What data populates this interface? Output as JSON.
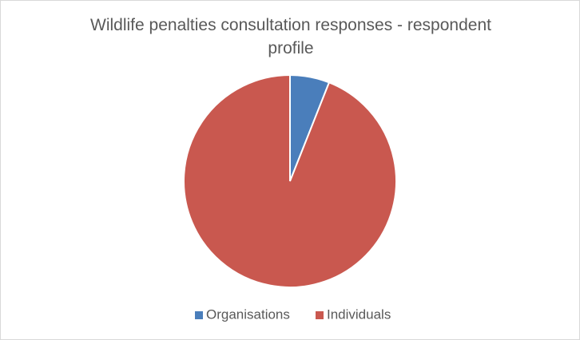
{
  "chart_data": {
    "type": "pie",
    "title": "Wildlife penalties consultation responses - respondent profile",
    "categories": [
      "Organisations",
      "Individuals"
    ],
    "values": [
      6,
      94
    ],
    "colors": [
      "#4a7ebb",
      "#c9584f"
    ],
    "legend": "bottom"
  }
}
